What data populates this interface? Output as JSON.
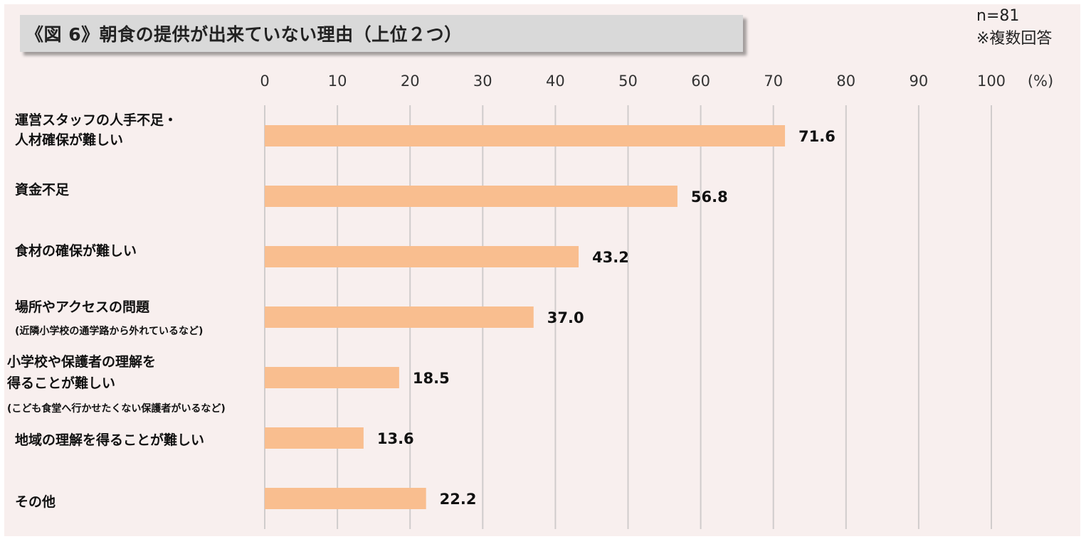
{
  "header": {
    "title": "《図 6》朝食の提供が出来ていない理由（上位２つ）",
    "n_label": "n=81",
    "note_label": "※複数回答"
  },
  "chart_data": {
    "type": "bar",
    "orientation": "horizontal",
    "title": "《図 6》朝食の提供が出来ていない理由（上位２つ）",
    "xlim": [
      0,
      100
    ],
    "xticks": [
      0,
      10,
      20,
      30,
      40,
      50,
      60,
      70,
      80,
      90,
      100
    ],
    "unit_label": "(%)",
    "grid": "vertical",
    "bar_color": "#f9be8f",
    "categories": [
      "運営スタッフの人手不足・人材確保が難しい",
      "資金不足",
      "食材の確保が難しい",
      "場所やアクセスの問題",
      "小学校や保護者の理解を得ることが難しい",
      "地域の理解を得ることが難しい",
      "その他"
    ],
    "values": [
      71.6,
      56.8,
      43.2,
      37.0,
      18.5,
      13.6,
      22.2
    ],
    "value_labels": [
      "71.6",
      "56.8",
      "43.2",
      "37.0",
      "18.5",
      "13.6",
      "22.2"
    ]
  },
  "labels": {
    "c0_line1": "運営スタッフの人手不足・",
    "c0_line2": "人材確保が難しい",
    "c1_line1": "資金不足",
    "c2_line1": "食材の確保が難しい",
    "c3_line1": "場所やアクセスの問題",
    "c3_sub": "(近隣小学校の通学路から外れているなど)",
    "c4_line1": "小学校や保護者の理解を",
    "c4_line2": "得ることが難しい",
    "c4_sub": "(こども食堂へ行かせたくない保護者がいるなど)",
    "c5_line1": "地域の理解を得ることが難しい",
    "c6_line1": "その他"
  }
}
